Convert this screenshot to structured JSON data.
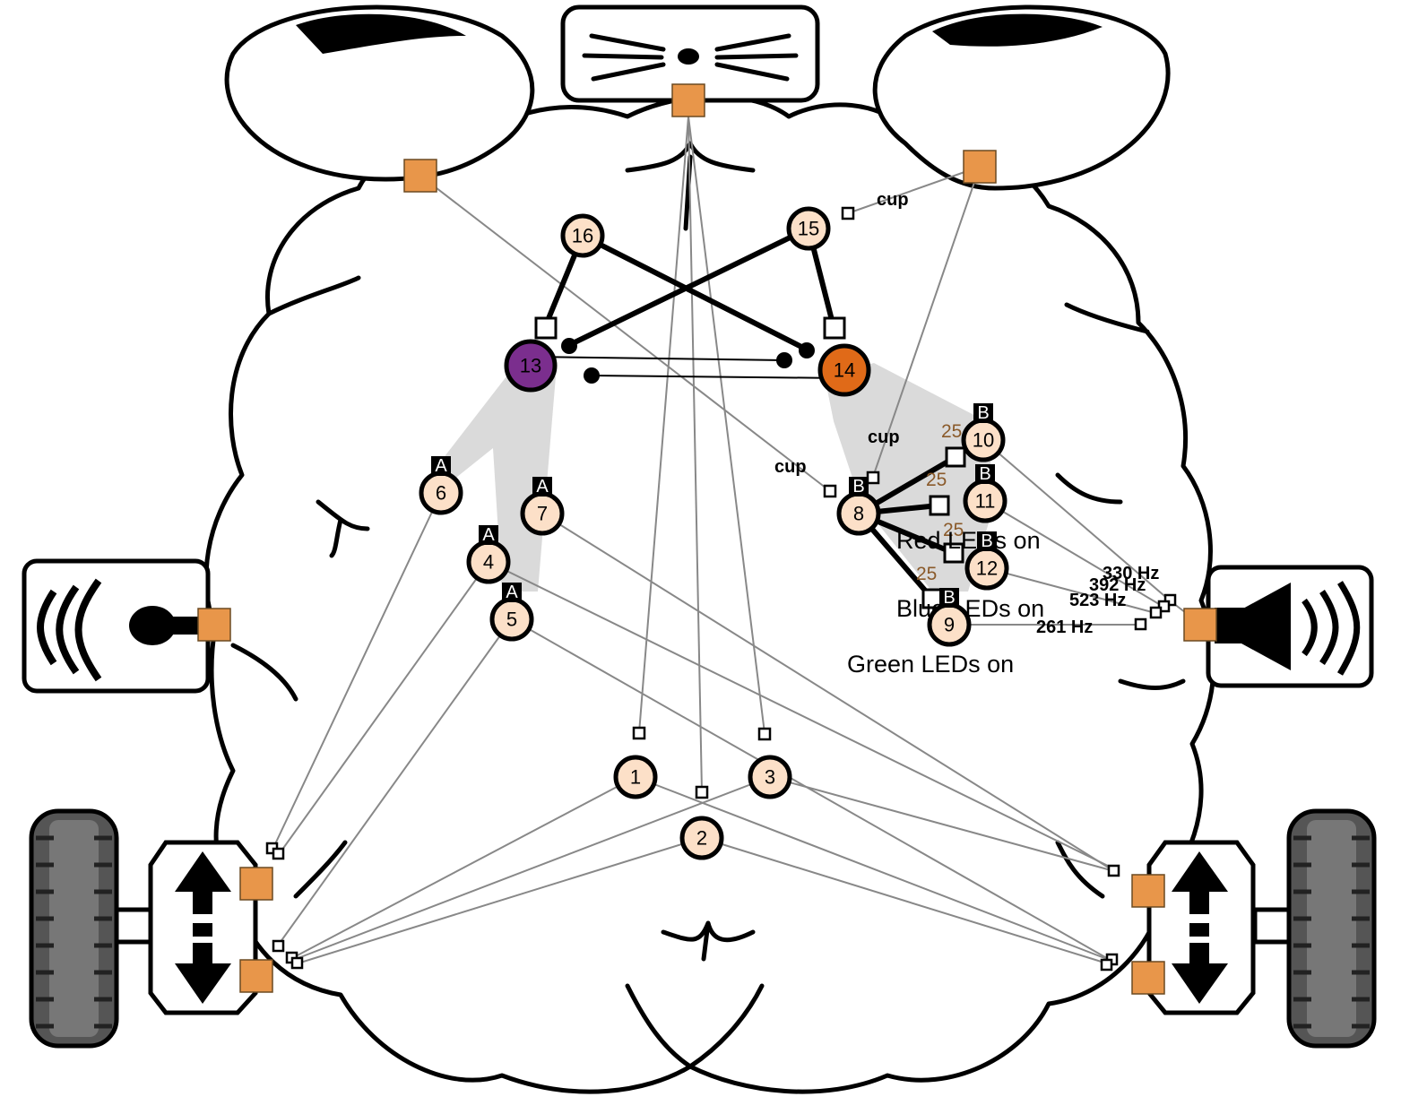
{
  "colors": {
    "neuron_fill": "#FCE0C8",
    "port": "#E8964A",
    "wire": "#888888",
    "purple_neuron": "#7B2E8E",
    "orange_neuron": "#E06A18",
    "shade": "#DADADA"
  },
  "icons": [
    "nose-sensor-icon",
    "microphone-icon",
    "speaker-icon",
    "left-wheel-icon",
    "right-wheel-icon",
    "up-down-arrow-icon"
  ],
  "neurons": [
    {
      "id": "1",
      "label": "1"
    },
    {
      "id": "2",
      "label": "2"
    },
    {
      "id": "3",
      "label": "3"
    },
    {
      "id": "4",
      "label": "4",
      "tag": "A"
    },
    {
      "id": "5",
      "label": "5",
      "tag": "A"
    },
    {
      "id": "6",
      "label": "6",
      "tag": "A"
    },
    {
      "id": "7",
      "label": "7",
      "tag": "A"
    },
    {
      "id": "8",
      "label": "8",
      "tag": "B"
    },
    {
      "id": "9",
      "label": "9",
      "tag": "B"
    },
    {
      "id": "10",
      "label": "10",
      "tag": "B"
    },
    {
      "id": "11",
      "label": "11",
      "tag": "B"
    },
    {
      "id": "12",
      "label": "12",
      "tag": "B"
    },
    {
      "id": "13",
      "label": "13"
    },
    {
      "id": "14",
      "label": "14"
    },
    {
      "id": "15",
      "label": "15"
    },
    {
      "id": "16",
      "label": "16"
    }
  ],
  "cup_labels": [
    "cup",
    "cup",
    "cup"
  ],
  "weights": [
    "25",
    "25",
    "25",
    "25"
  ],
  "leds": [
    "Red LEDs on",
    "Blue LEDs on",
    "Green LEDs on"
  ],
  "tones": [
    "330 Hz",
    "392 Hz",
    "523 Hz",
    "261 Hz"
  ]
}
